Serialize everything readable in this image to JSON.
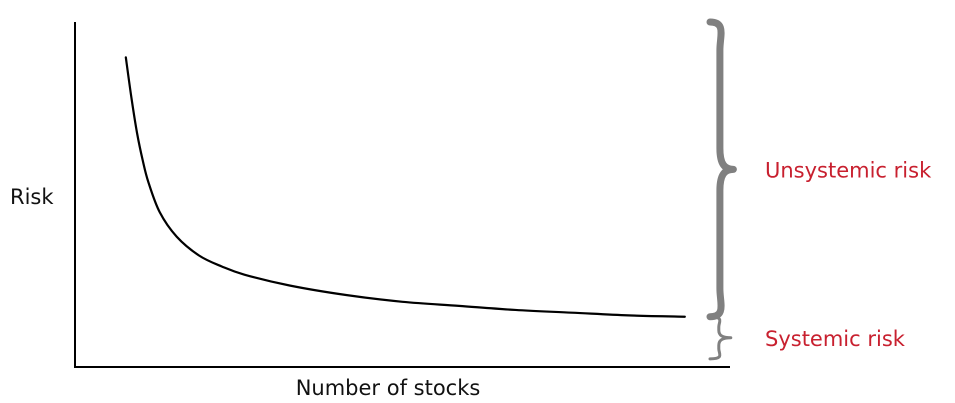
{
  "chart_data": {
    "type": "line",
    "title": "",
    "xlabel": "Number of stocks",
    "ylabel": "Risk",
    "grid": false,
    "legend": "none",
    "series": [
      {
        "points": [
          [
            1,
            100
          ],
          [
            2,
            85
          ],
          [
            3,
            72
          ],
          [
            4,
            62
          ],
          [
            5,
            54
          ],
          [
            7,
            43
          ],
          [
            10,
            34
          ],
          [
            14,
            27
          ],
          [
            18,
            23
          ],
          [
            22,
            20
          ],
          [
            30,
            16
          ],
          [
            40,
            12.5
          ],
          [
            50,
            10
          ],
          [
            60,
            8.5
          ],
          [
            70,
            7
          ],
          [
            80,
            6
          ],
          [
            90,
            5
          ],
          [
            100,
            4.5
          ]
        ],
        "color": "#000000"
      }
    ],
    "xlim": [
      -8,
      108
    ],
    "ylim": [
      -14,
      113
    ],
    "annotations": [
      {
        "label": "Unsystemic risk",
        "brace_from": 4.5,
        "brace_to": 113,
        "color": "#c8202f",
        "brace_color": "#808080"
      },
      {
        "label": "Systemic  risk",
        "brace_from": -11,
        "brace_to": 4.5,
        "color": "#c8202f",
        "brace_color": "#808080"
      }
    ]
  }
}
